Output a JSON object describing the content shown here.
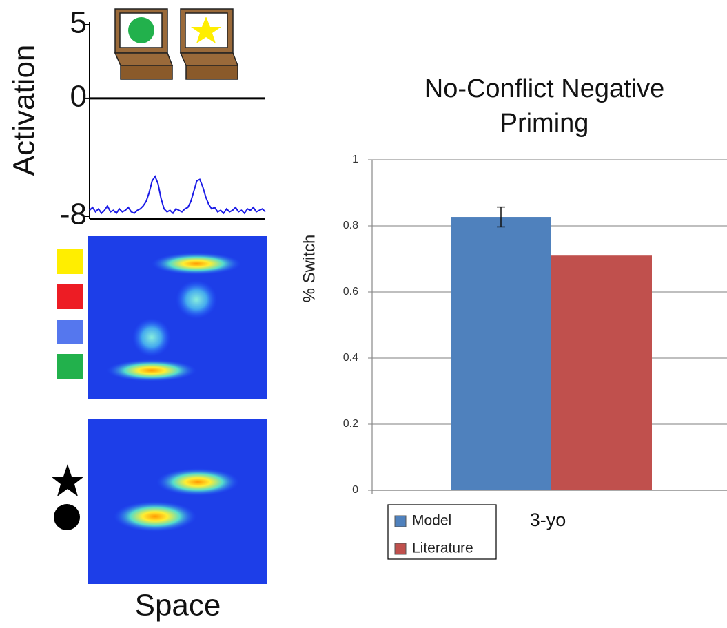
{
  "chart_data": [
    {
      "type": "line",
      "ylabel": "Activation",
      "xlabel": "Space",
      "ylim": [
        -8,
        5
      ],
      "yticks": [
        -8,
        0,
        5
      ],
      "color": "#1a1ae6",
      "values": [
        -7.6,
        -7.4,
        -7.7,
        -7.5,
        -7.8,
        -7.6,
        -7.3,
        -7.7,
        -7.6,
        -7.8,
        -7.5,
        -7.7,
        -7.6,
        -7.4,
        -7.7,
        -7.8,
        -7.6,
        -7.5,
        -7.3,
        -7.0,
        -6.4,
        -5.6,
        -5.3,
        -5.8,
        -6.8,
        -7.5,
        -7.7,
        -7.6,
        -7.8,
        -7.5,
        -7.6,
        -7.7,
        -7.5,
        -7.4,
        -7.0,
        -6.3,
        -5.6,
        -5.5,
        -6.0,
        -6.7,
        -7.2,
        -7.5,
        -7.4,
        -7.7,
        -7.6,
        -7.8,
        -7.5,
        -7.7,
        -7.6,
        -7.4,
        -7.7,
        -7.6,
        -7.8,
        -7.5,
        -7.6,
        -7.4,
        -7.7,
        -7.6,
        -7.5,
        -7.7
      ]
    },
    {
      "type": "bar",
      "title": "No-Conflict Negative Priming",
      "ylabel": "% Switch",
      "categories": [
        "3-yo"
      ],
      "ylim": [
        0,
        1
      ],
      "yticks": [
        0,
        0.2,
        0.4,
        0.6,
        0.8,
        1
      ],
      "grid": true,
      "series": [
        {
          "name": "Model",
          "color": "#4f81bd",
          "values": [
            0.827
          ],
          "errors": [
            0.03
          ]
        },
        {
          "name": "Literature",
          "color": "#c0504d",
          "values": [
            0.71
          ]
        }
      ]
    }
  ]
}
